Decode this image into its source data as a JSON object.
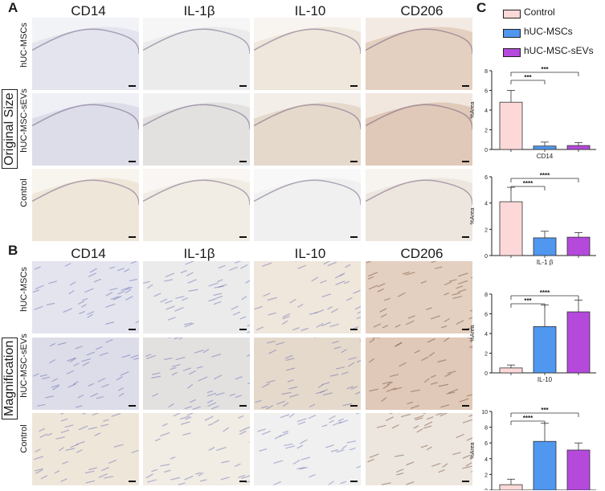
{
  "panels": {
    "a": "A",
    "b": "B",
    "c": "C"
  },
  "columns": [
    "CD14",
    "IL-1β",
    "IL-10",
    "CD206"
  ],
  "rows": [
    "hUC-MSCs",
    "hUC-MSC-sEVs",
    "Control"
  ],
  "groups": {
    "top": "Original Size",
    "bottom": "Magnification"
  },
  "legend": [
    {
      "label": "Control",
      "color": "#fcd8d8"
    },
    {
      "label": "hUC-MSCs",
      "color": "#4f97ef"
    },
    {
      "label": "hUC-MSC-sEVs",
      "color": "#b549dc"
    }
  ],
  "tile_tones": {
    "hUC-MSCs": [
      "#e3e4ee",
      "#ebebeb",
      "#efe6dc",
      "#e4d0c0"
    ],
    "hUC-MSC-sEVs": [
      "#dcdde8",
      "#e3e1e0",
      "#e5d9cc",
      "#e0c9b8"
    ],
    "Control": [
      "#efe6da",
      "#f1ece4",
      "#f0f0f0",
      "#ede6de"
    ]
  },
  "chart_data": [
    {
      "type": "bar",
      "categories": [
        "Control",
        "hUC-MSCs",
        "hUC-MSC-sEVs"
      ],
      "values": [
        4.8,
        0.35,
        0.4
      ],
      "errors": [
        1.2,
        0.4,
        0.3
      ],
      "xlabel": "CD14",
      "ylabel": "%Area",
      "ylim": [
        0,
        8
      ],
      "yticks": [
        0,
        2,
        4,
        6,
        8
      ],
      "sig": [
        {
          "from": 0,
          "to": 1,
          "label": "***"
        },
        {
          "from": 0,
          "to": 2,
          "label": "***"
        }
      ]
    },
    {
      "type": "bar",
      "categories": [
        "Control",
        "hUC-MSCs",
        "hUC-MSC-sEVs"
      ],
      "values": [
        4.1,
        1.35,
        1.4
      ],
      "errors": [
        1.1,
        0.5,
        0.35
      ],
      "xlabel": "IL-1 β",
      "ylabel": "%Area",
      "ylim": [
        0,
        6
      ],
      "yticks": [
        0,
        2,
        4,
        6
      ],
      "sig": [
        {
          "from": 0,
          "to": 1,
          "label": "****"
        },
        {
          "from": 0,
          "to": 2,
          "label": "****"
        }
      ]
    },
    {
      "type": "bar",
      "categories": [
        "Control",
        "hUC-MSCs",
        "hUC-MSC-sEVs"
      ],
      "values": [
        0.5,
        4.7,
        6.2
      ],
      "errors": [
        0.3,
        2.2,
        1.2
      ],
      "xlabel": "IL-10",
      "ylabel": "%Area",
      "ylim": [
        0,
        8
      ],
      "yticks": [
        0,
        2,
        4,
        6,
        8
      ],
      "sig": [
        {
          "from": 0,
          "to": 1,
          "label": "***"
        },
        {
          "from": 0,
          "to": 2,
          "label": "****"
        }
      ]
    },
    {
      "type": "bar",
      "categories": [
        "Control",
        "hUC-MSCs",
        "hUC-MSC-sEVs"
      ],
      "values": [
        0.7,
        6.2,
        5.1
      ],
      "errors": [
        0.7,
        2.3,
        0.9
      ],
      "xlabel": "CD206",
      "ylabel": "%Area",
      "ylim": [
        0,
        10
      ],
      "yticks": [
        0,
        2,
        4,
        6,
        8,
        10
      ],
      "sig": [
        {
          "from": 0,
          "to": 1,
          "label": "****"
        },
        {
          "from": 0,
          "to": 2,
          "label": "***"
        }
      ]
    }
  ]
}
